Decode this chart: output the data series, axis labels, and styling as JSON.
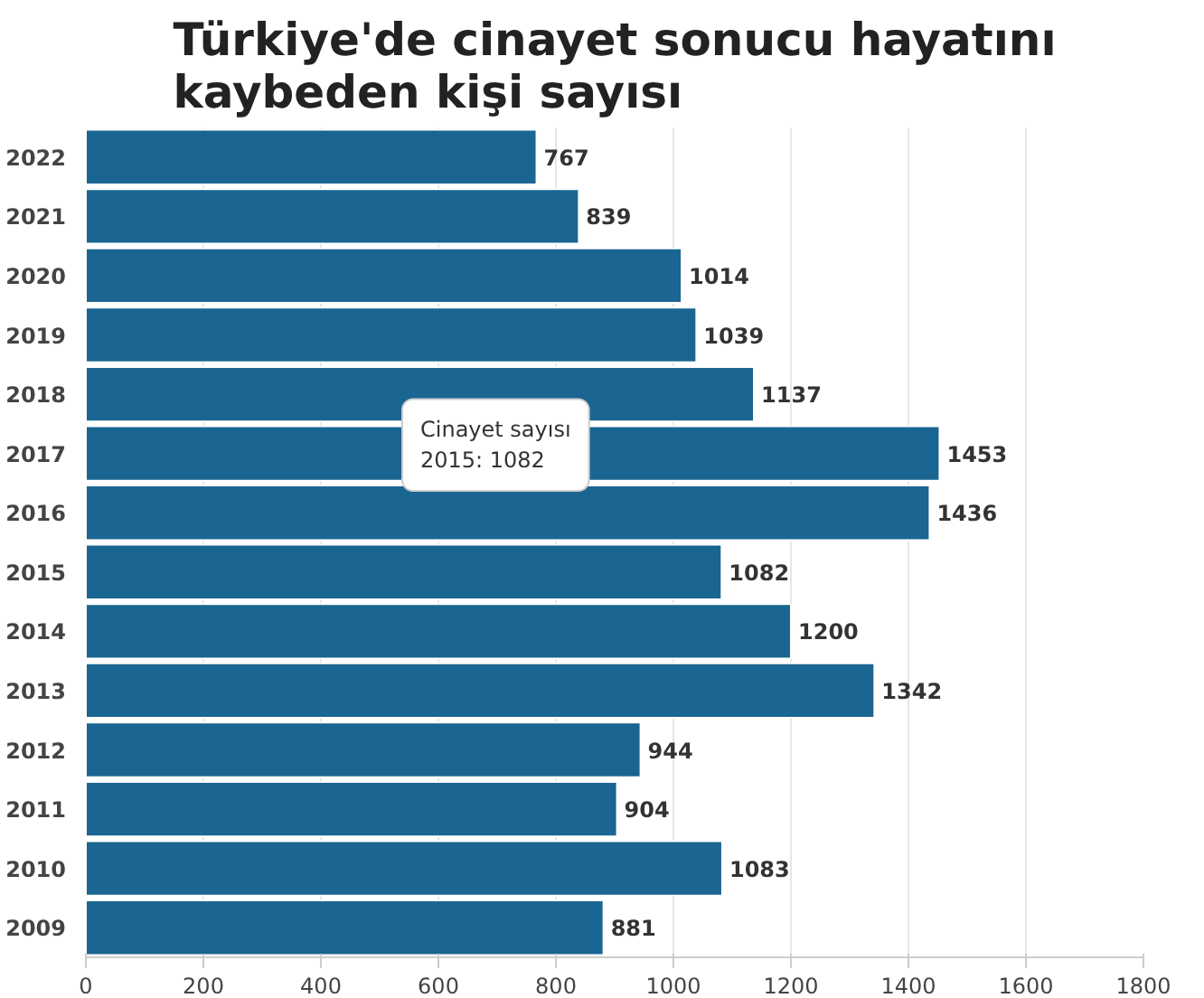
{
  "chart_data": {
    "type": "bar",
    "orientation": "horizontal",
    "title": "Türkiye'de cinayet sonucu hayatını kaybeden kişi sayısı",
    "categories": [
      "2022",
      "2021",
      "2020",
      "2019",
      "2018",
      "2017",
      "2016",
      "2015",
      "2014",
      "2013",
      "2012",
      "2011",
      "2010",
      "2009"
    ],
    "values": [
      767,
      839,
      1014,
      1039,
      1137,
      1453,
      1436,
      1082,
      1200,
      1342,
      944,
      904,
      1083,
      881
    ],
    "color": "#1a6591",
    "xlim": [
      0,
      1800
    ],
    "xticks": [
      0,
      200,
      400,
      600,
      800,
      1000,
      1200,
      1400,
      1600,
      1800
    ],
    "grid": "x",
    "data_labels": true,
    "annotations": [
      "Cinayet sayısı",
      "2015: 1082"
    ]
  }
}
